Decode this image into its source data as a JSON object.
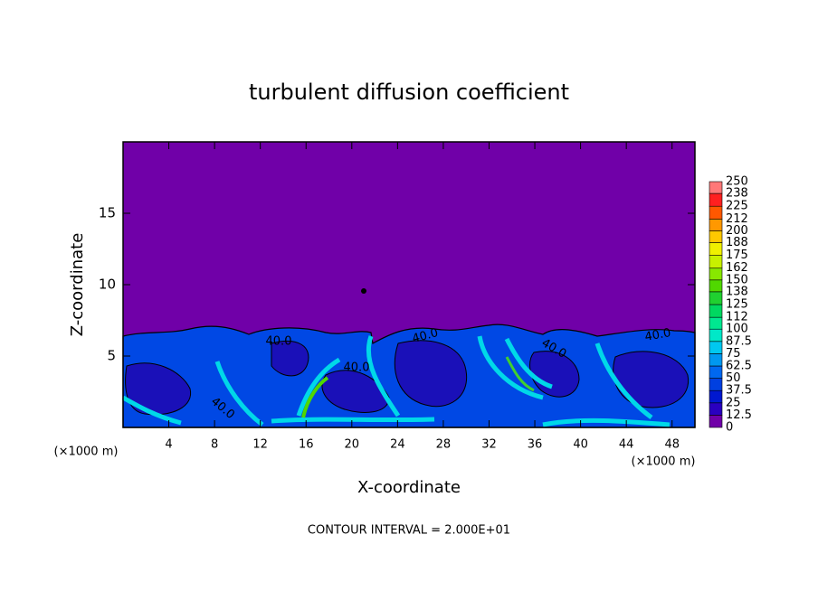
{
  "chart_data": {
    "type": "contour",
    "title": "turbulent diffusion coefficient",
    "x_label": "X-coordinate",
    "y_label": "Z-coordinate",
    "x_unit_left": "(×1000 m)",
    "x_unit_right": "(×1000 m)",
    "footnote": "CONTOUR INTERVAL = 2.000E+01",
    "xlim": [
      0,
      50
    ],
    "xticks": [
      4,
      8,
      12,
      16,
      20,
      24,
      28,
      32,
      36,
      40,
      44,
      48
    ],
    "ylim": [
      0,
      20
    ],
    "yticks": [
      5,
      10,
      15
    ],
    "contour_labels": [
      "40.0",
      "40.0",
      "40.0",
      "40.0",
      "40.0",
      "40.0"
    ],
    "colorbar": {
      "levels": [
        0,
        12.5,
        25,
        37.5,
        50,
        62.5,
        75,
        87.5,
        100,
        112,
        125,
        138,
        150,
        162,
        175,
        188,
        200,
        212,
        225,
        238,
        250
      ],
      "colors": [
        "#7000a8",
        "#2a00c0",
        "#0018d0",
        "#0040e0",
        "#0068f0",
        "#0098f0",
        "#00c8f0",
        "#00e8c8",
        "#00e890",
        "#00d860",
        "#20d030",
        "#50d800",
        "#88e800",
        "#c8f000",
        "#f0f000",
        "#ffc800",
        "#ff9800",
        "#ff5800",
        "#ff2020",
        "#ff7878"
      ]
    }
  }
}
